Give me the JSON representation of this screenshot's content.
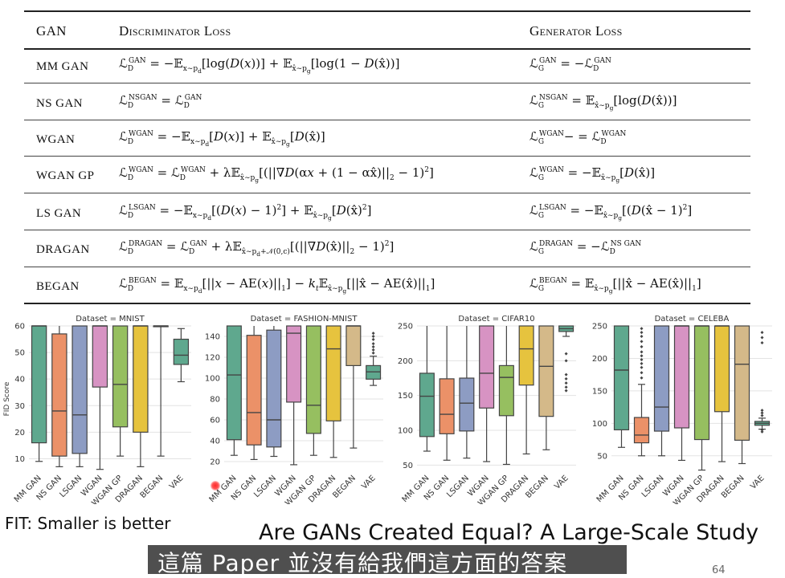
{
  "table": {
    "headers": {
      "gan": "GAN",
      "disc": "Discriminator Loss",
      "gen": "Generator Loss"
    },
    "rows": [
      {
        "name": "MM GAN",
        "disc": "ℒ_D^GAN = −𝔼_{x∼p_d}[log(D(x))] + 𝔼_{x̂∼p_g}[log(1 − D(x̂))]",
        "gen": "ℒ_G^GAN = −ℒ_D^GAN"
      },
      {
        "name": "NS GAN",
        "disc": "ℒ_D^NSGAN = ℒ_D^GAN",
        "gen": "ℒ_G^NSGAN = 𝔼_{x̂∼p_g}[log(D(x̂))]"
      },
      {
        "name": "WGAN",
        "disc": "ℒ_D^WGAN = −𝔼_{x∼p_d}[D(x)] + 𝔼_{x̂∼p_g}[D(x̂)]",
        "gen": "ℒ_G^WGAN− = ℒ_D^WGAN"
      },
      {
        "name": "WGAN GP",
        "disc": "ℒ_D^WGAN = ℒ_D^WGAN + λ𝔼_{x̂∼p_g}[(||∇D(αx + (1 − αx̂)||_2 − 1)^2]",
        "gen": "ℒ_G^WGAN = −𝔼_{x̂∼p_g}[D(x̂)]"
      },
      {
        "name": "LS GAN",
        "disc": "ℒ_D^LSGAN = −𝔼_{x∼p_d}[(D(x) − 1)^2] + 𝔼_{x̂∼p_g}[D(x̂)^2]",
        "gen": "ℒ_G^LSGAN = −𝔼_{x̂∼p_g}[(D(x̂ − 1)^2]"
      },
      {
        "name": "DRAGAN",
        "disc": "ℒ_D^DRAGAN = ℒ_D^GAN + λ𝔼_{x̂∼p_d+𝒩(0,c)}[(||∇D(x̂)||_2 − 1)^2]",
        "gen": "ℒ_G^DRAGAN = −ℒ_D^NS GAN"
      },
      {
        "name": "BEGAN",
        "disc": "ℒ_D^BEGAN = 𝔼_{x∼p_d}[||x − AE(x)||_1] − k_t𝔼_{x̂∼p_g}[||x̂ − AE(x̂)||_1]",
        "gen": "ℒ_G^BEGAN = 𝔼_{x̂∼p_g}[||x̂ − AE(x̂)||_1]"
      }
    ]
  },
  "chart_data": [
    {
      "type": "box",
      "title": "Dataset = MNIST",
      "ylabel": "FID Score",
      "ylim": [
        5,
        60
      ],
      "yticks": [
        10,
        20,
        30,
        40,
        50,
        60
      ],
      "categories": [
        "MM GAN",
        "NS GAN",
        "LSGAN",
        "WGAN",
        "WGAN GP",
        "DRAGAN",
        "BEGAN",
        "VAE"
      ],
      "colors": [
        "#5fa88e",
        "#eb9168",
        "#8d9cc3",
        "#d793c3",
        "#96bf60",
        "#e6c33e",
        "#d4b989",
        "#5fa88e"
      ],
      "boxes": [
        {
          "whislo": 9,
          "q1": 16,
          "med": 60,
          "q3": 60,
          "whishi": 60
        },
        {
          "whislo": 7,
          "q1": 11,
          "med": 28,
          "q3": 57,
          "whishi": 60
        },
        {
          "whislo": 7,
          "q1": 12,
          "med": 26.5,
          "q3": 60,
          "whishi": 60
        },
        {
          "whislo": 6,
          "q1": 37,
          "med": 60,
          "q3": 60,
          "whishi": 60
        },
        {
          "whislo": 11,
          "q1": 22,
          "med": 38,
          "q3": 60,
          "whishi": 60
        },
        {
          "whislo": 7,
          "q1": 20,
          "med": 60,
          "q3": 60,
          "whishi": 60
        },
        {
          "whislo": 11,
          "q1": 60,
          "med": 60,
          "q3": 60,
          "whishi": 60
        },
        {
          "whislo": 39,
          "q1": 45.5,
          "med": 49,
          "q3": 55,
          "whishi": 59
        }
      ],
      "outliers": [
        [],
        [],
        [],
        [],
        [],
        [],
        [],
        []
      ]
    },
    {
      "type": "box",
      "title": "Dataset = FASHION-MNIST",
      "ylabel": "",
      "ylim": [
        10,
        150
      ],
      "yticks": [
        20,
        40,
        60,
        80,
        100,
        120,
        140
      ],
      "categories": [
        "MM GAN",
        "NS GAN",
        "LSGAN",
        "WGAN",
        "WGAN GP",
        "DRAGAN",
        "BEGAN",
        "VAE"
      ],
      "colors": [
        "#5fa88e",
        "#eb9168",
        "#8d9cc3",
        "#d793c3",
        "#96bf60",
        "#e6c33e",
        "#d4b989",
        "#5fa88e"
      ],
      "boxes": [
        {
          "whislo": 26,
          "q1": 41,
          "med": 103,
          "q3": 150,
          "whishi": 150
        },
        {
          "whislo": 22,
          "q1": 36,
          "med": 67,
          "q3": 141,
          "whishi": 150
        },
        {
          "whislo": 25,
          "q1": 34,
          "med": 60,
          "q3": 146,
          "whishi": 150
        },
        {
          "whislo": 17,
          "q1": 77,
          "med": 143,
          "q3": 150,
          "whishi": 150
        },
        {
          "whislo": 26,
          "q1": 47,
          "med": 74,
          "q3": 150,
          "whishi": 150
        },
        {
          "whislo": 24,
          "q1": 59,
          "med": 128,
          "q3": 150,
          "whishi": 150
        },
        {
          "whislo": 33,
          "q1": 112,
          "med": 150,
          "q3": 150,
          "whishi": 150
        },
        {
          "whislo": 93,
          "q1": 99,
          "med": 106,
          "q3": 112,
          "whishi": 121
        }
      ],
      "outliers": [
        [],
        [],
        [],
        [],
        [],
        [],
        [],
        [
          124,
          127,
          130,
          133,
          137,
          140,
          143
        ]
      ]
    },
    {
      "type": "box",
      "title": "Dataset = CIFAR10",
      "ylabel": "",
      "ylim": [
        40,
        250
      ],
      "yticks": [
        50,
        100,
        150,
        200,
        250
      ],
      "categories": [
        "MM GAN",
        "NS GAN",
        "LSGAN",
        "WGAN",
        "WGAN GP",
        "DRAGAN",
        "BEGAN",
        "VAE"
      ],
      "colors": [
        "#5fa88e",
        "#eb9168",
        "#8d9cc3",
        "#d793c3",
        "#96bf60",
        "#e6c33e",
        "#d4b989",
        "#5fa88e"
      ],
      "boxes": [
        {
          "whislo": 70,
          "q1": 91,
          "med": 149,
          "q3": 182,
          "whishi": 250
        },
        {
          "whislo": 57,
          "q1": 95,
          "med": 123,
          "q3": 174,
          "whishi": 250
        },
        {
          "whislo": 60,
          "q1": 99,
          "med": 139,
          "q3": 175,
          "whishi": 250
        },
        {
          "whislo": 55,
          "q1": 132,
          "med": 182,
          "q3": 250,
          "whishi": 250
        },
        {
          "whislo": 51,
          "q1": 121,
          "med": 176,
          "q3": 193,
          "whishi": 250
        },
        {
          "whislo": 66,
          "q1": 165,
          "med": 217,
          "q3": 250,
          "whishi": 250
        },
        {
          "whislo": 72,
          "q1": 120,
          "med": 192,
          "q3": 250,
          "whishi": 250
        },
        {
          "whislo": 235,
          "q1": 242,
          "med": 246,
          "q3": 250,
          "whishi": 250
        }
      ],
      "outliers": [
        [],
        [],
        [],
        [],
        [],
        [],
        [],
        [
          157,
          162,
          168,
          174,
          180,
          200,
          210
        ]
      ]
    },
    {
      "type": "box",
      "title": "Dataset = CELEBA",
      "ylabel": "",
      "ylim": [
        25,
        250
      ],
      "yticks": [
        50,
        100,
        150,
        200,
        250
      ],
      "categories": [
        "MM GAN",
        "NS GAN",
        "LSGAN",
        "WGAN",
        "WGAN GP",
        "DRAGAN",
        "BEGAN",
        "VAE"
      ],
      "colors": [
        "#5fa88e",
        "#eb9168",
        "#8d9cc3",
        "#d793c3",
        "#96bf60",
        "#e6c33e",
        "#d4b989",
        "#5fa88e"
      ],
      "boxes": [
        {
          "whislo": 63,
          "q1": 90,
          "med": 182,
          "q3": 250,
          "whishi": 250
        },
        {
          "whislo": 50,
          "q1": 70,
          "med": 82,
          "q3": 109,
          "whishi": 160
        },
        {
          "whislo": 50,
          "q1": 88,
          "med": 125,
          "q3": 250,
          "whishi": 250
        },
        {
          "whislo": 43,
          "q1": 93,
          "med": 250,
          "q3": 250,
          "whishi": 250
        },
        {
          "whislo": 28,
          "q1": 75,
          "med": 250,
          "q3": 250,
          "whishi": 250
        },
        {
          "whislo": 41,
          "q1": 118,
          "med": 250,
          "q3": 250,
          "whishi": 250
        },
        {
          "whislo": 38,
          "q1": 74,
          "med": 191,
          "q3": 250,
          "whishi": 250
        },
        {
          "whislo": 91,
          "q1": 97,
          "med": 100,
          "q3": 103,
          "whishi": 108
        }
      ],
      "outliers": [
        [],
        [
          170,
          178,
          186,
          192,
          198,
          204,
          210,
          218,
          226,
          234,
          240,
          246
        ],
        [],
        [],
        [],
        [],
        [],
        [
          87,
          90,
          112,
          116,
          120,
          224,
          232,
          240
        ]
      ]
    }
  ],
  "captions": {
    "fit_note": "FIT: Smaller is better",
    "paper_title": "Are GANs Created Equal? A Large-Scale Study",
    "subtitle": "這篇 Paper 並沒有給我們這方面的答案",
    "page_number": "64"
  }
}
